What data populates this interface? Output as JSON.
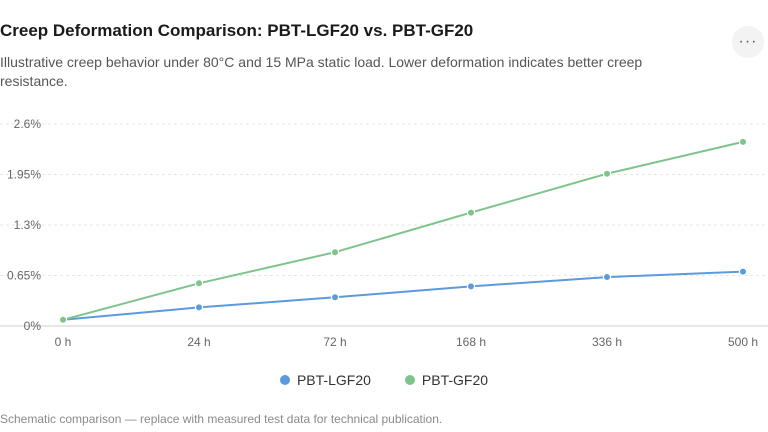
{
  "header": {
    "title": "Creep Deformation Comparison: PBT-LGF20 vs. PBT-GF20",
    "subtitle": "Illustrative creep behavior under 80°C and 15 MPa static load. Lower deformation indicates better creep resistance.",
    "more_icon": "more-horizontal-icon",
    "more_glyph": "···"
  },
  "footnote": "Schematic comparison — replace with measured test data for technical publication.",
  "chart_data": {
    "type": "line",
    "title": "Creep Deformation Comparison: PBT-LGF20 vs. PBT-GF20",
    "xlabel": "",
    "ylabel": "",
    "categories": [
      "0 h",
      "24 h",
      "72 h",
      "168 h",
      "336 h",
      "500 h"
    ],
    "y_ticks": [
      0,
      0.65,
      1.3,
      1.95,
      2.6
    ],
    "y_tick_labels": [
      "0%",
      "0.65%",
      "1.3%",
      "1.95%",
      "2.6%"
    ],
    "ylim": [
      0,
      2.6
    ],
    "grid": "horizontal-dashed",
    "legend_position": "bottom",
    "series": [
      {
        "name": "PBT-LGF20",
        "color": "#5b9bdc",
        "values": [
          0.08,
          0.24,
          0.37,
          0.51,
          0.63,
          0.7
        ]
      },
      {
        "name": "PBT-GF20",
        "color": "#7cc48a",
        "values": [
          0.08,
          0.55,
          0.95,
          1.46,
          1.96,
          2.37
        ]
      }
    ]
  }
}
